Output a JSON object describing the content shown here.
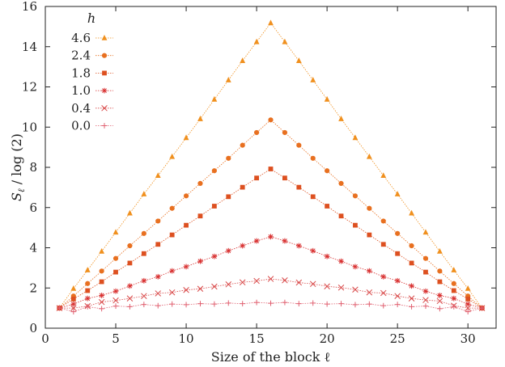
{
  "chart_data": {
    "type": "scatter",
    "title": "",
    "xlabel": "Size of the block ℓ",
    "ylabel": "S_ℓ / log (2)",
    "ylabel_main": "S",
    "ylabel_sub": "ℓ",
    "ylabel_rest": " / log (2)",
    "xlim": [
      0,
      32
    ],
    "ylim": [
      0,
      16
    ],
    "xticks": [
      0,
      5,
      10,
      15,
      20,
      25,
      30
    ],
    "yticks": [
      0,
      2,
      4,
      6,
      8,
      10,
      12,
      14,
      16
    ],
    "legend_title": "h",
    "legend_position": "top-left",
    "x": [
      1,
      2,
      3,
      4,
      5,
      6,
      7,
      8,
      9,
      10,
      11,
      12,
      13,
      14,
      15,
      16,
      17,
      18,
      19,
      20,
      21,
      22,
      23,
      24,
      25,
      26,
      27,
      28,
      29,
      30,
      31
    ],
    "series": [
      {
        "name": "4.6",
        "marker": "triangle",
        "color": "#f0901e",
        "values": [
          1.0,
          1.97,
          2.89,
          3.82,
          4.77,
          5.72,
          6.67,
          7.59,
          8.53,
          9.47,
          10.41,
          11.38,
          12.34,
          13.3,
          14.24,
          15.18,
          14.24,
          13.3,
          12.34,
          11.38,
          10.41,
          9.47,
          8.53,
          7.59,
          6.67,
          5.72,
          4.77,
          3.82,
          2.89,
          1.97,
          1.0
        ]
      },
      {
        "name": "2.4",
        "marker": "circle",
        "color": "#e87020",
        "values": [
          1.0,
          1.6,
          2.22,
          2.84,
          3.47,
          4.1,
          4.71,
          5.33,
          5.96,
          6.58,
          7.2,
          7.83,
          8.45,
          9.1,
          9.73,
          10.36,
          9.73,
          9.1,
          8.45,
          7.83,
          7.2,
          6.58,
          5.96,
          5.33,
          4.71,
          4.1,
          3.47,
          2.84,
          2.22,
          1.6,
          1.0
        ]
      },
      {
        "name": "1.8",
        "marker": "square",
        "color": "#dd5020",
        "values": [
          1.0,
          1.45,
          1.87,
          2.31,
          2.79,
          3.24,
          3.71,
          4.17,
          4.64,
          5.12,
          5.58,
          6.07,
          6.54,
          7.01,
          7.47,
          7.92,
          7.47,
          7.01,
          6.54,
          6.07,
          5.58,
          5.12,
          4.64,
          4.17,
          3.71,
          3.24,
          2.79,
          2.31,
          1.87,
          1.45,
          1.0
        ]
      },
      {
        "name": "1.0",
        "marker": "star",
        "color": "#d83030",
        "values": [
          1.0,
          1.2,
          1.48,
          1.63,
          1.84,
          2.1,
          2.36,
          2.56,
          2.85,
          3.06,
          3.33,
          3.57,
          3.85,
          4.1,
          4.34,
          4.55,
          4.34,
          4.1,
          3.85,
          3.57,
          3.33,
          3.06,
          2.85,
          2.56,
          2.36,
          2.1,
          1.84,
          1.63,
          1.48,
          1.2,
          1.0
        ]
      },
      {
        "name": "0.4",
        "marker": "cross",
        "color": "#d84848",
        "values": [
          1.0,
          1.0,
          1.1,
          1.3,
          1.38,
          1.48,
          1.6,
          1.73,
          1.78,
          1.9,
          1.96,
          2.07,
          2.18,
          2.28,
          2.35,
          2.45,
          2.38,
          2.27,
          2.2,
          2.08,
          2.02,
          1.92,
          1.78,
          1.75,
          1.6,
          1.48,
          1.4,
          1.35,
          1.12,
          1.0,
          1.0
        ]
      },
      {
        "name": "0.0",
        "marker": "plus",
        "color": "#e06070",
        "values": [
          1.0,
          0.82,
          1.07,
          0.97,
          1.1,
          1.07,
          1.18,
          1.12,
          1.2,
          1.17,
          1.22,
          1.2,
          1.25,
          1.22,
          1.28,
          1.24,
          1.28,
          1.22,
          1.25,
          1.2,
          1.22,
          1.17,
          1.2,
          1.12,
          1.18,
          1.07,
          1.1,
          0.97,
          1.07,
          0.82,
          1.0
        ]
      }
    ]
  }
}
